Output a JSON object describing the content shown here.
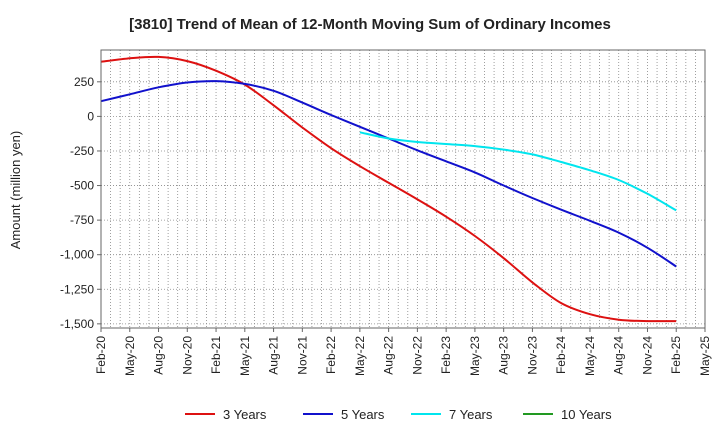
{
  "chart_data": {
    "type": "line",
    "title": "[3810]  Trend of Mean of 12-Month Moving Sum of Ordinary Incomes",
    "xlabel": "",
    "ylabel": "Amount (million yen)",
    "ylim": [
      -1530,
      480
    ],
    "y_ticks": [
      250,
      0,
      -250,
      -500,
      -750,
      -1000,
      -1250,
      -1500
    ],
    "y_tick_labels": [
      "250",
      "0",
      "-250",
      "-500",
      "-750",
      "-1,000",
      "-1,250",
      "-1,500"
    ],
    "x_tick_labels": [
      "Feb-20",
      "May-20",
      "Aug-20",
      "Nov-20",
      "Feb-21",
      "May-21",
      "Aug-21",
      "Nov-21",
      "Feb-22",
      "May-22",
      "Aug-22",
      "Nov-22",
      "Feb-23",
      "May-23",
      "Aug-23",
      "Nov-23",
      "Feb-24",
      "May-24",
      "Aug-24",
      "Nov-24",
      "Feb-25",
      "May-25"
    ],
    "x_range_months": [
      0,
      63
    ],
    "grid": true,
    "legend_position": "bottom",
    "series": [
      {
        "name": "3 Years",
        "color": "#dd1111",
        "x": [
          0,
          3,
          6,
          9,
          12,
          15,
          18,
          21,
          24,
          27,
          30,
          33,
          36,
          39,
          42,
          45,
          48,
          51,
          54,
          57,
          60
        ],
        "values": [
          395,
          420,
          430,
          400,
          330,
          230,
          80,
          -80,
          -230,
          -360,
          -480,
          -600,
          -725,
          -865,
          -1025,
          -1200,
          -1350,
          -1430,
          -1470,
          -1480,
          -1480
        ]
      },
      {
        "name": "5 Years",
        "color": "#1111cc",
        "x": [
          0,
          3,
          6,
          9,
          12,
          15,
          18,
          21,
          24,
          27,
          30,
          33,
          36,
          39,
          42,
          45,
          48,
          51,
          54,
          57,
          60
        ],
        "values": [
          110,
          160,
          210,
          245,
          255,
          235,
          185,
          100,
          10,
          -75,
          -160,
          -245,
          -325,
          -405,
          -500,
          -590,
          -675,
          -755,
          -840,
          -950,
          -1085
        ]
      },
      {
        "name": "7 Years",
        "color": "#00e5ee",
        "x": [
          27,
          30,
          33,
          36,
          39,
          42,
          45,
          48,
          51,
          54,
          57,
          60
        ],
        "values": [
          -115,
          -160,
          -185,
          -200,
          -215,
          -240,
          -275,
          -330,
          -390,
          -460,
          -560,
          -680
        ]
      },
      {
        "name": "10 Years",
        "color": "#229922",
        "x": [],
        "values": []
      }
    ]
  }
}
